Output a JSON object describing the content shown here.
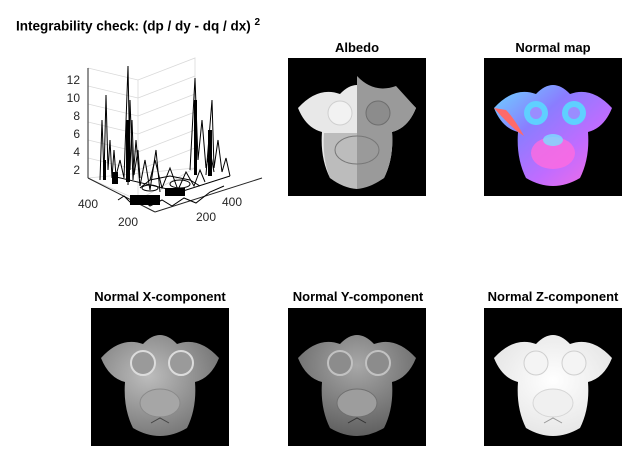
{
  "figure": {
    "plot3d": {
      "title_main": "Integrability check: (dp / dy - dq / dx)",
      "title_sup": "2",
      "z_ticks": [
        "2",
        "4",
        "6",
        "8",
        "10",
        "12"
      ],
      "x_ticks": [
        "200",
        "400"
      ],
      "y_ticks": [
        "200",
        "400"
      ]
    },
    "panels": [
      {
        "title": "Albedo",
        "kind": "albedo"
      },
      {
        "title": "Normal map",
        "kind": "normal"
      },
      {
        "title": "Normal X-component",
        "kind": "nx"
      },
      {
        "title": "Normal Y-component",
        "kind": "ny"
      },
      {
        "title": "Normal Z-component",
        "kind": "nz"
      }
    ]
  },
  "colors": {
    "background": "#ffffff",
    "image_bg": "#000000",
    "axis": "#262626",
    "grid": "#d9d9d9"
  }
}
